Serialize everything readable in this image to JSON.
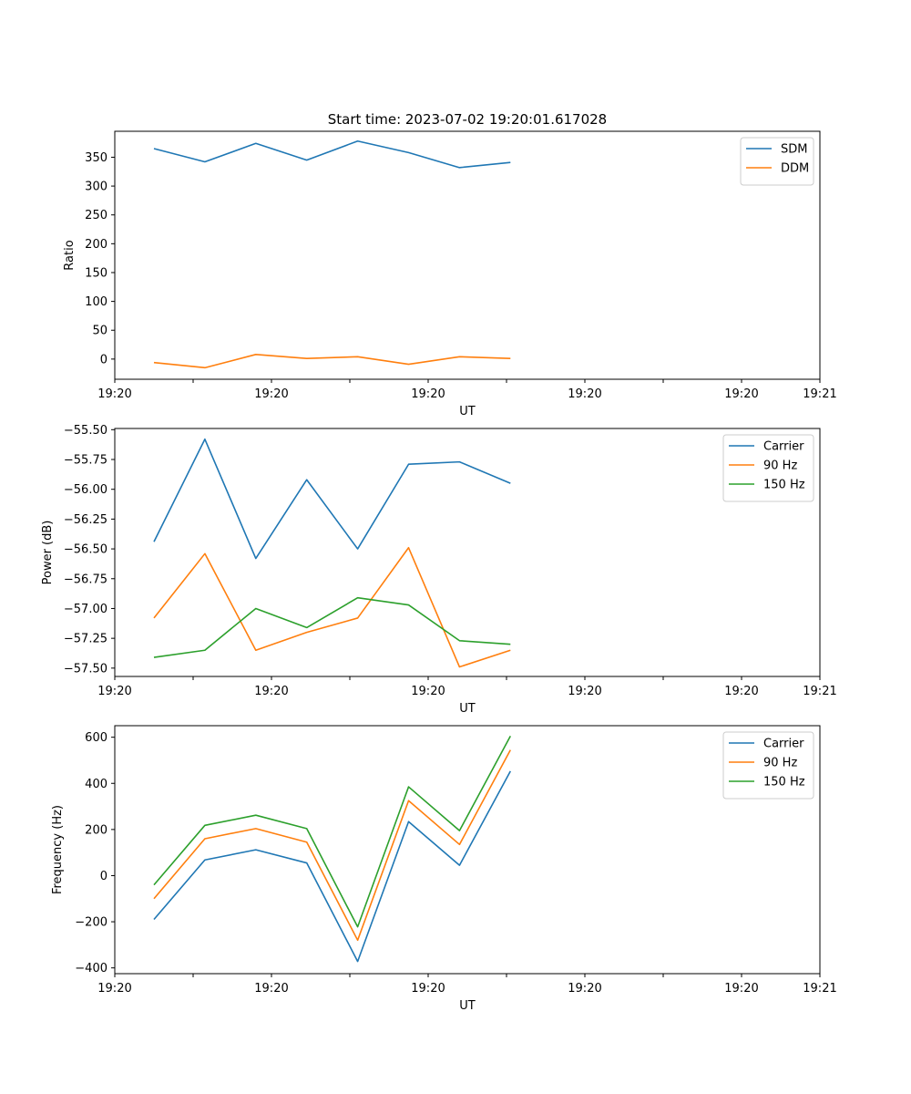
{
  "figure_title": "Start time: 2023-07-02 19:20:01.617028",
  "chart_data": [
    {
      "id": "ratio",
      "type": "line",
      "title": "Start time: 2023-07-02 19:20:01.617028",
      "xlabel": "UT",
      "ylabel": "Ratio",
      "xlim": [
        0,
        9
      ],
      "ylim": [
        -35,
        395
      ],
      "xticks": [
        0,
        1,
        2,
        3,
        4,
        5,
        6,
        7,
        8,
        9
      ],
      "xtick_labels": [
        "19:20",
        "",
        "19:20",
        "",
        "19:20",
        "",
        "19:20",
        "",
        "19:20",
        "19:21"
      ],
      "yticks": [
        0,
        50,
        100,
        150,
        200,
        250,
        300,
        350
      ],
      "ytick_labels": [
        "0",
        "50",
        "100",
        "150",
        "200",
        "250",
        "300",
        "350"
      ],
      "legend_position": "top-right",
      "x": [
        0.5,
        1.15,
        1.8,
        2.45,
        3.1,
        3.75,
        4.4,
        5.05
      ],
      "series": [
        {
          "name": "SDM",
          "color": "#1f77b4",
          "values": [
            365,
            342,
            374,
            345,
            378,
            358,
            332,
            341
          ]
        },
        {
          "name": "DDM",
          "color": "#ff7f0e",
          "values": [
            -6,
            -15,
            8,
            1,
            4,
            -9,
            4,
            1
          ]
        }
      ]
    },
    {
      "id": "power",
      "type": "line",
      "title": "",
      "xlabel": "UT",
      "ylabel": "Power (dB)",
      "xlim": [
        0,
        9
      ],
      "ylim": [
        -57.57,
        -55.49
      ],
      "xticks": [
        0,
        1,
        2,
        3,
        4,
        5,
        6,
        7,
        8,
        9
      ],
      "xtick_labels": [
        "19:20",
        "",
        "19:20",
        "",
        "19:20",
        "",
        "19:20",
        "",
        "19:20",
        "19:21"
      ],
      "yticks": [
        -55.5,
        -55.75,
        -56.0,
        -56.25,
        -56.5,
        -56.75,
        -57.0,
        -57.25,
        -57.5
      ],
      "ytick_labels": [
        "−55.50",
        "−55.75",
        "−56.00",
        "−56.25",
        "−56.50",
        "−56.75",
        "−57.00",
        "−57.25",
        "−57.50"
      ],
      "legend_position": "top-right",
      "x": [
        0.5,
        1.15,
        1.8,
        2.45,
        3.1,
        3.75,
        4.4,
        5.05
      ],
      "series": [
        {
          "name": "Carrier",
          "color": "#1f77b4",
          "values": [
            -56.44,
            -55.58,
            -56.58,
            -55.92,
            -56.5,
            -55.79,
            -55.77,
            -55.95
          ]
        },
        {
          "name": "90 Hz",
          "color": "#ff7f0e",
          "values": [
            -57.08,
            -56.54,
            -57.35,
            -57.2,
            -57.08,
            -56.49,
            -57.49,
            -57.35
          ]
        },
        {
          "name": "150 Hz",
          "color": "#2ca02c",
          "values": [
            -57.41,
            -57.35,
            -57.0,
            -57.16,
            -56.91,
            -56.97,
            -57.27,
            -57.3
          ]
        }
      ]
    },
    {
      "id": "frequency",
      "type": "line",
      "title": "",
      "xlabel": "UT",
      "ylabel": "Frequency (Hz)",
      "xlim": [
        0,
        9
      ],
      "ylim": [
        -425,
        650
      ],
      "xticks": [
        0,
        1,
        2,
        3,
        4,
        5,
        6,
        7,
        8,
        9
      ],
      "xtick_labels": [
        "19:20",
        "",
        "19:20",
        "",
        "19:20",
        "",
        "19:20",
        "",
        "19:20",
        "19:21"
      ],
      "yticks": [
        -400,
        -200,
        0,
        200,
        400,
        600
      ],
      "ytick_labels": [
        "−400",
        "−200",
        "0",
        "200",
        "400",
        "600"
      ],
      "legend_position": "top-right",
      "x": [
        0.5,
        1.15,
        1.8,
        2.45,
        3.1,
        3.75,
        4.4,
        5.05
      ],
      "series": [
        {
          "name": "Carrier",
          "color": "#1f77b4",
          "values": [
            -190,
            68,
            112,
            55,
            -372,
            234,
            45,
            453
          ]
        },
        {
          "name": "90 Hz",
          "color": "#ff7f0e",
          "values": [
            -100,
            160,
            204,
            145,
            -280,
            325,
            135,
            545
          ]
        },
        {
          "name": "150 Hz",
          "color": "#2ca02c",
          "values": [
            -40,
            218,
            262,
            204,
            -222,
            385,
            195,
            605
          ]
        }
      ]
    }
  ]
}
